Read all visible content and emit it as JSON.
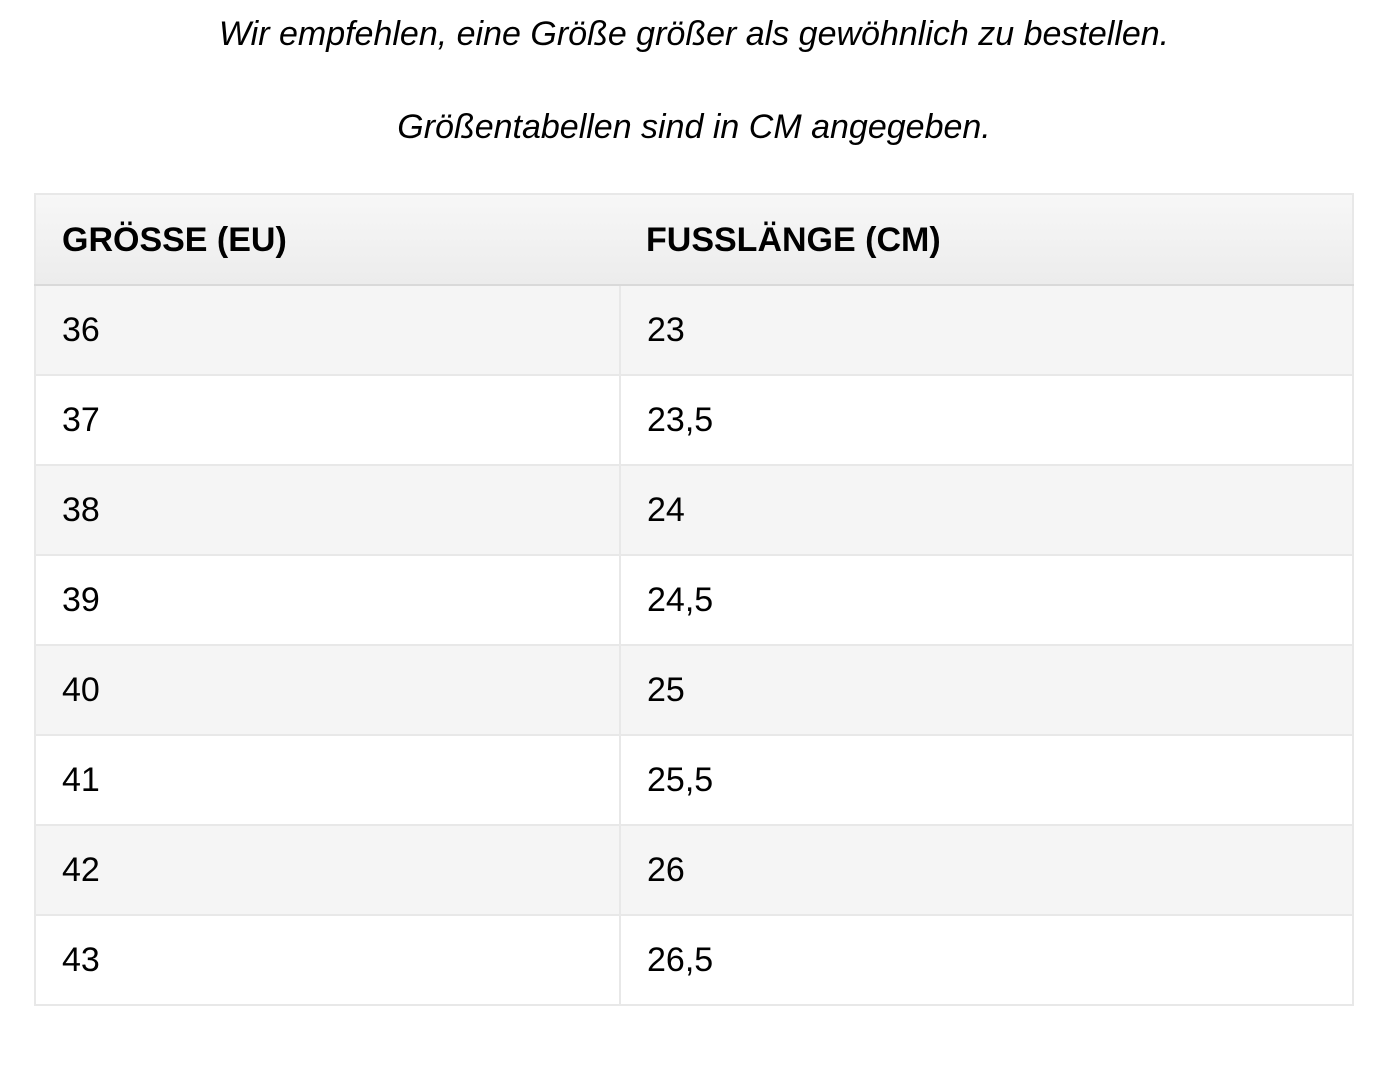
{
  "intro": {
    "line1": "Wir empfehlen, eine Größe größer als gewöhnlich zu bestellen.",
    "line2": "Größentabellen sind in CM angegeben."
  },
  "size_table": {
    "columns": [
      "GRÖSSE (EU)",
      "FUSSLÄNGE (CM)"
    ],
    "rows": [
      [
        "36",
        "23"
      ],
      [
        "37",
        "23,5"
      ],
      [
        "38",
        "24"
      ],
      [
        "39",
        "24,5"
      ],
      [
        "40",
        "25"
      ],
      [
        "41",
        "25,5"
      ],
      [
        "42",
        "26"
      ],
      [
        "43",
        "26,5"
      ]
    ]
  },
  "chart_data": {
    "type": "table",
    "columns": [
      "GRÖSSE (EU)",
      "FUSSLÄNGE (CM)"
    ],
    "rows": [
      [
        "36",
        "23"
      ],
      [
        "37",
        "23,5"
      ],
      [
        "38",
        "24"
      ],
      [
        "39",
        "24,5"
      ],
      [
        "40",
        "25"
      ],
      [
        "41",
        "25,5"
      ],
      [
        "42",
        "26"
      ],
      [
        "43",
        "26,5"
      ]
    ]
  },
  "colors": {
    "text": "#000000",
    "header_gradient_top": "#f7f7f7",
    "header_gradient_bottom": "#ececec",
    "header_border_bottom": "#d9d9d9",
    "row_stripe": "#f5f5f5",
    "row_plain": "#ffffff",
    "border": "#e8e8e8"
  }
}
